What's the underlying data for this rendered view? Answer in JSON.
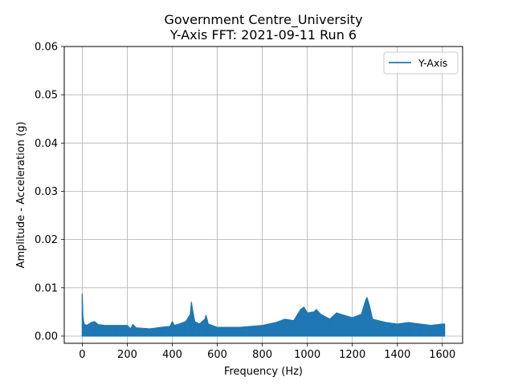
{
  "chart_data": {
    "type": "line",
    "title": "Government Centre_University",
    "subtitle": "Y-Axis FFT: 2021-09-11 Run 6",
    "xlabel": "Frequency (Hz)",
    "ylabel": "Amplitude - Acceleration (g)",
    "xlim": [
      -80,
      1690
    ],
    "ylim": [
      -0.0015,
      0.06
    ],
    "x_ticks": [
      0,
      200,
      400,
      600,
      800,
      1000,
      1200,
      1400,
      1600
    ],
    "y_ticks": [
      0.0,
      0.01,
      0.02,
      0.03,
      0.04,
      0.05,
      0.06
    ],
    "x_tick_labels": [
      "0",
      "200",
      "400",
      "600",
      "800",
      "1000",
      "1200",
      "1400",
      "1600"
    ],
    "y_tick_labels": [
      "0.00",
      "0.01",
      "0.02",
      "0.03",
      "0.04",
      "0.05",
      "0.06"
    ],
    "grid": true,
    "legend_position": "top-right",
    "series": [
      {
        "name": "Y-Axis",
        "color": "#1f77b4",
        "x_range": [
          0,
          1610
        ],
        "envelope": {
          "x": [
            0,
            3,
            8,
            20,
            40,
            55,
            70,
            100,
            150,
            200,
            215,
            225,
            240,
            300,
            350,
            390,
            400,
            410,
            430,
            460,
            480,
            485,
            490,
            500,
            520,
            545,
            550,
            560,
            600,
            700,
            800,
            860,
            900,
            940,
            970,
            985,
            1000,
            1030,
            1040,
            1060,
            1100,
            1130,
            1150,
            1200,
            1240,
            1260,
            1265,
            1275,
            1290,
            1350,
            1400,
            1450,
            1500,
            1550,
            1600,
            1610
          ],
          "upper": [
            0.0087,
            0.004,
            0.0025,
            0.0022,
            0.0028,
            0.003,
            0.0024,
            0.0022,
            0.0022,
            0.0022,
            0.0015,
            0.0024,
            0.0017,
            0.0015,
            0.0018,
            0.002,
            0.003,
            0.0022,
            0.0025,
            0.003,
            0.0045,
            0.007,
            0.0055,
            0.003,
            0.0025,
            0.0035,
            0.0043,
            0.0025,
            0.0018,
            0.0018,
            0.0022,
            0.0028,
            0.0035,
            0.0032,
            0.0055,
            0.006,
            0.0048,
            0.005,
            0.0055,
            0.0045,
            0.0035,
            0.0048,
            0.0045,
            0.0038,
            0.0045,
            0.0075,
            0.008,
            0.0065,
            0.0035,
            0.0028,
            0.0025,
            0.0028,
            0.0025,
            0.0022,
            0.0025,
            0.0025
          ],
          "lower": [
            0.0,
            0.0,
            0.0,
            0.0,
            0.0,
            0.0,
            0.0,
            0.0,
            0.0,
            0.0,
            0.0,
            0.0,
            0.0,
            0.0,
            0.0,
            0.0,
            0.0,
            0.0,
            0.0,
            0.0,
            0.0,
            0.0,
            0.0,
            0.0,
            0.0,
            0.0,
            0.0,
            0.0,
            0.0,
            0.0,
            0.0,
            0.0,
            0.0,
            0.0,
            0.0,
            0.0,
            0.0,
            0.0,
            0.0,
            0.0,
            0.0,
            0.0,
            0.0,
            0.0,
            0.0,
            0.0,
            0.0,
            0.0,
            0.0,
            0.0,
            0.0,
            0.0,
            0.0,
            0.0,
            0.0,
            0.0
          ]
        }
      }
    ]
  }
}
